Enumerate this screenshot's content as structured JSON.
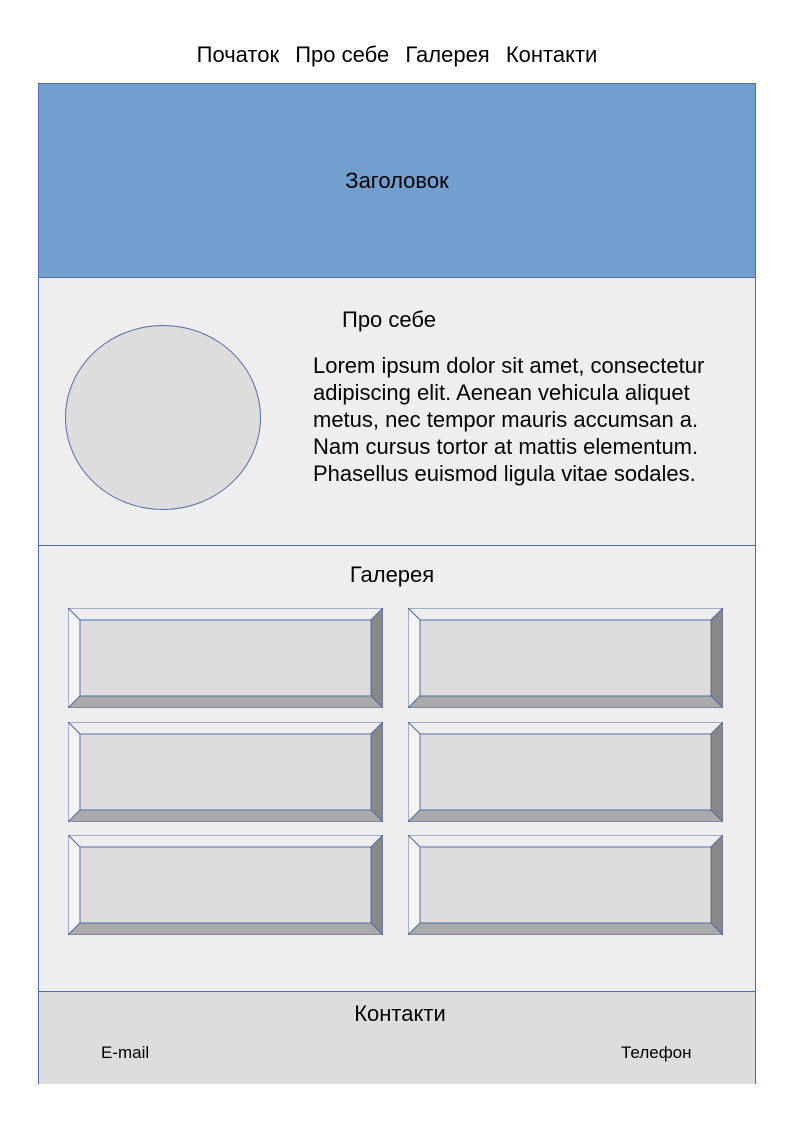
{
  "nav": {
    "items": [
      "Початок",
      "Про себе",
      "Галерея",
      "Контакти"
    ]
  },
  "header": {
    "title": "Заголовок"
  },
  "about": {
    "heading": "Про себе",
    "lines": [
      "Lorem ipsum dolor sit amet, consectetur",
      "adipiscing elit. Aenean vehicula aliquet",
      "metus, nec tempor mauris accumsan a.",
      "Nam cursus tortor at mattis elementum.",
      "Phasellus euismod ligula vitae sodales."
    ]
  },
  "gallery": {
    "heading": "Галерея",
    "tile_count": 6
  },
  "footer": {
    "heading": "Контакти",
    "email": "E-mail",
    "phone": "Телефон"
  },
  "colors": {
    "header_bg": "#729fcf",
    "section_bg": "#eeeeee",
    "footer_bg": "#dddddd",
    "border": "#4f6fa8"
  }
}
